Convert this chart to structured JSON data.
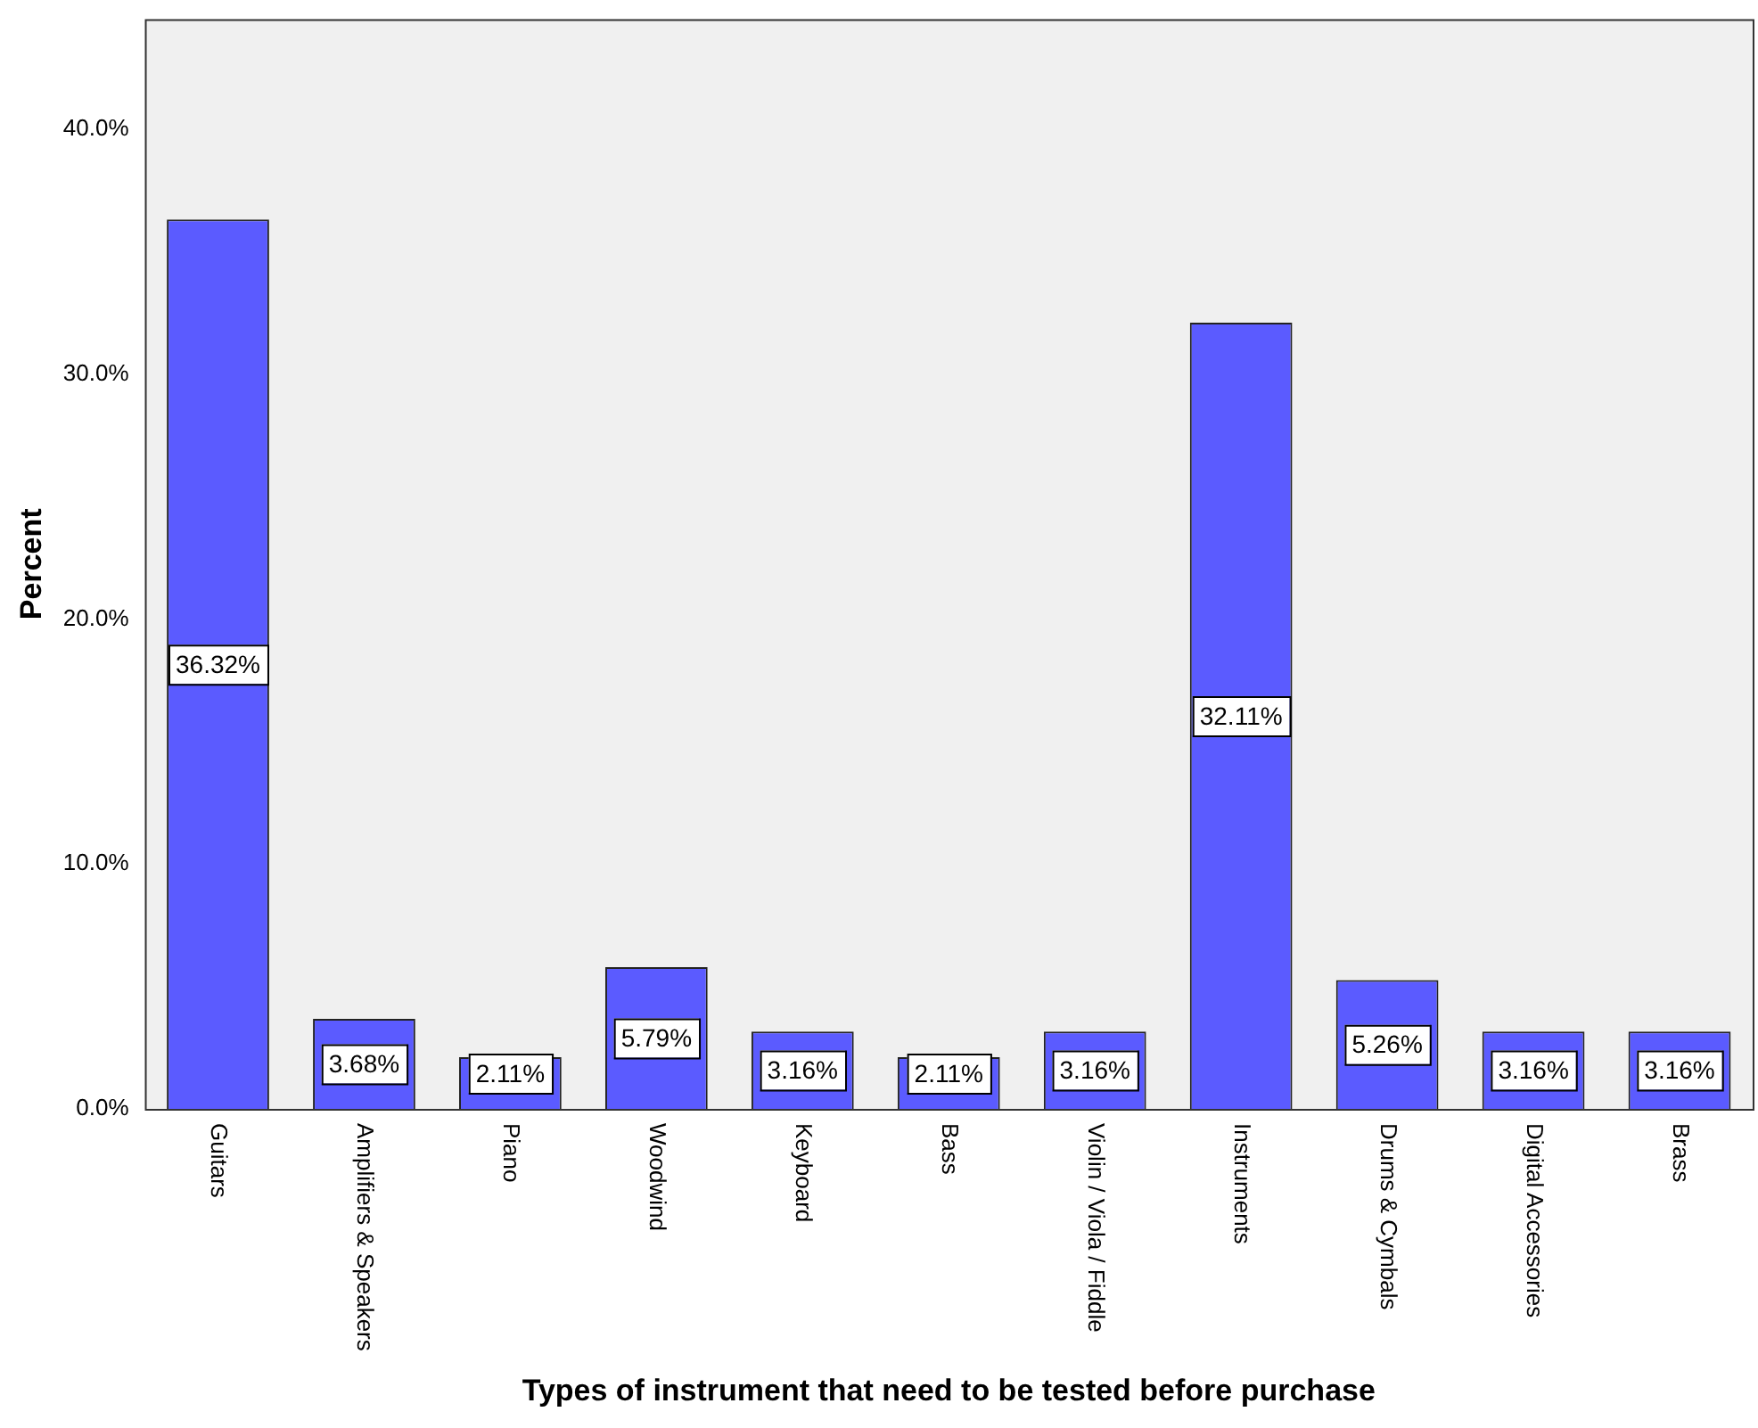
{
  "chart_data": {
    "type": "bar",
    "xlabel": "Types of instrument that need to be tested before purchase",
    "ylabel": "Percent",
    "categories": [
      "Guitars",
      "Amplifiers & Speakers",
      "Piano",
      "Woodwind",
      "Keyboard",
      "Bass",
      "Violin / Viola / Fiddle",
      "Instruments",
      "Drums & Cymbals",
      "Digital Accessories",
      "Brass"
    ],
    "values": [
      36.32,
      3.68,
      2.11,
      5.79,
      3.16,
      2.11,
      3.16,
      32.11,
      5.26,
      3.16,
      3.16
    ],
    "value_labels": [
      "36.32%",
      "3.68%",
      "2.11%",
      "5.79%",
      "3.16%",
      "2.11%",
      "3.16%",
      "32.11%",
      "5.26%",
      "3.16%",
      "3.16%"
    ],
    "color": "#5b5bff",
    "ylim": [
      0,
      44.5
    ],
    "yticks": [
      {
        "value": 0,
        "label": "0.0%"
      },
      {
        "value": 10,
        "label": "10.0%"
      },
      {
        "value": 20,
        "label": "20.0%"
      },
      {
        "value": 30,
        "label": "30.0%"
      },
      {
        "value": 40,
        "label": "40.0%"
      }
    ],
    "grid": false,
    "legend": false
  }
}
